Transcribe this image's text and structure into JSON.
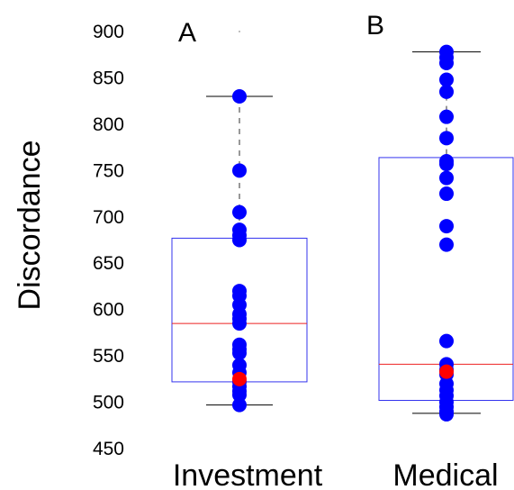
{
  "chart_data": {
    "type": "box",
    "ylabel": "Discordance",
    "ylim": [
      450,
      900
    ],
    "yticks": [
      900,
      850,
      800,
      750,
      700,
      650,
      600,
      550,
      500,
      450
    ],
    "colors": {
      "box": "#3333ee",
      "median": "#ee2222",
      "point": "#0000ff",
      "highlight": "#ff0000",
      "whisker": "#000000"
    },
    "groups": [
      {
        "label": "Investment",
        "panel": "A",
        "q1": 522,
        "median": 585,
        "q3": 677,
        "whisker_low": 497,
        "whisker_high": 830,
        "top_marker": 900,
        "points": [
          830,
          750,
          705,
          686,
          680,
          675,
          620,
          615,
          605,
          595,
          590,
          585,
          562,
          557,
          553,
          540,
          532,
          522,
          517,
          512,
          508,
          497
        ],
        "highlight": [
          525
        ]
      },
      {
        "label": "Medical",
        "panel": "B",
        "q1": 502,
        "median": 541,
        "q3": 764,
        "whisker_low": 488,
        "whisker_high": 878,
        "top_marker": null,
        "points": [
          878,
          872,
          866,
          848,
          835,
          808,
          785,
          760,
          757,
          742,
          725,
          690,
          670,
          566,
          541,
          535,
          530,
          520,
          513,
          507,
          500,
          495,
          490,
          487
        ],
        "highlight": [
          533
        ]
      }
    ]
  }
}
